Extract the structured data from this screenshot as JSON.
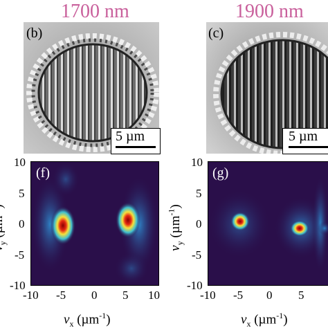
{
  "columns": [
    {
      "title": "1700 nm",
      "sem_label": "(b)",
      "scale_bar": "5 µm",
      "fft_label": "(f)"
    },
    {
      "title": "1900 nm",
      "sem_label": "(c)",
      "scale_bar": "5 µm",
      "fft_label": "(g)"
    }
  ],
  "axes": {
    "y_ticks": [
      "10",
      "5",
      "0",
      "-5",
      "-10"
    ],
    "x_ticks_f": [
      "-10",
      "-5",
      "0",
      "5",
      "10"
    ],
    "x_ticks_g": [
      "-10",
      "-5",
      "0",
      "5"
    ],
    "x_label_var": "v",
    "x_label_sub": "x",
    "x_label_unit": " (µm",
    "x_label_exp": "-1",
    "x_label_close": ")",
    "y_label_var": "v",
    "y_label_sub": "y",
    "y_label_unit": " (µm",
    "y_label_exp": "-1",
    "y_label_close": ")"
  },
  "colors": {
    "title": "#c9609c",
    "fft_background": "#2a0f4a",
    "hotspot": "#c0101a"
  }
}
